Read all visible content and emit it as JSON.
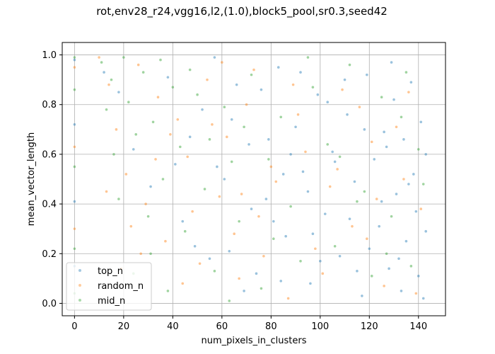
{
  "chart_data": {
    "type": "scatter",
    "title": "rot,env28_r24,vgg16,l2,(1.0),block5_pool,sr0.3,seed42",
    "xlabel": "num_pixels_in_clusters",
    "ylabel": "mean_vector_length",
    "xlim": [
      -5,
      151
    ],
    "ylim": [
      -0.05,
      1.05
    ],
    "xticks": [
      0,
      20,
      40,
      60,
      80,
      100,
      120,
      140
    ],
    "yticks": [
      0.0,
      0.2,
      0.4,
      0.6,
      0.8,
      1.0
    ],
    "xtick_labels": [
      "0",
      "20",
      "40",
      "60",
      "80",
      "100",
      "120",
      "140"
    ],
    "ytick_labels": [
      "0.0",
      "0.2",
      "0.4",
      "0.6",
      "0.8",
      "1.0"
    ],
    "grid": true,
    "legend_position": "lower-left",
    "series": [
      {
        "name": "top_n",
        "color": "#1f77b4",
        "points": [
          [
            0,
            0.98
          ],
          [
            0,
            0.72
          ],
          [
            0,
            0.41
          ],
          [
            0,
            0.15
          ],
          [
            12,
            0.93
          ],
          [
            18,
            0.85
          ],
          [
            24,
            0.62
          ],
          [
            31,
            0.47
          ],
          [
            38,
            0.91
          ],
          [
            44,
            0.33
          ],
          [
            52,
            0.78
          ],
          [
            58,
            0.55
          ],
          [
            63,
            0.21
          ],
          [
            66,
            0.88
          ],
          [
            71,
            0.64
          ],
          [
            74,
            0.12
          ],
          [
            78,
            0.42
          ],
          [
            83,
            0.95
          ],
          [
            86,
            0.27
          ],
          [
            90,
            0.71
          ],
          [
            93,
            0.53
          ],
          [
            96,
            0.08
          ],
          [
            99,
            0.84
          ],
          [
            102,
            0.36
          ],
          [
            105,
            0.61
          ],
          [
            108,
            0.19
          ],
          [
            111,
            0.76
          ],
          [
            114,
            0.49
          ],
          [
            117,
            0.03
          ],
          [
            119,
            0.92
          ],
          [
            122,
            0.58
          ],
          [
            124,
            0.31
          ],
          [
            126,
            0.69
          ],
          [
            128,
            0.14
          ],
          [
            130,
            0.82
          ],
          [
            131,
            0.44
          ],
          [
            133,
            0.05
          ],
          [
            134,
            0.66
          ],
          [
            135,
            0.25
          ],
          [
            137,
            0.89
          ],
          [
            138,
            0.52
          ],
          [
            139,
            0.37
          ],
          [
            140,
            0.11
          ],
          [
            141,
            0.73
          ],
          [
            142,
            0.02
          ],
          [
            143,
            0.6
          ],
          [
            143,
            0.29
          ],
          [
            120,
            0.22
          ],
          [
            110,
            0.9
          ],
          [
            100,
            0.17
          ],
          [
            95,
            0.45
          ],
          [
            88,
            0.6
          ],
          [
            81,
            0.33
          ],
          [
            76,
            0.86
          ],
          [
            69,
            0.05
          ],
          [
            61,
            0.5
          ],
          [
            55,
            0.18
          ],
          [
            47,
            0.67
          ],
          [
            136,
            0.48
          ],
          [
            129,
            0.97
          ],
          [
            125,
            0.41
          ],
          [
            115,
            0.13
          ],
          [
            106,
            0.57
          ],
          [
            97,
            0.28
          ],
          [
            84,
            0.09
          ],
          [
            72,
            0.38
          ],
          [
            64,
            0.74
          ],
          [
            57,
            0.99
          ],
          [
            49,
            0.23
          ],
          [
            41,
            0.56
          ],
          [
            127,
            0.63
          ],
          [
            132,
            0.18
          ],
          [
            118,
            0.7
          ],
          [
            112,
            0.34
          ],
          [
            103,
            0.81
          ],
          [
            92,
            0.93
          ],
          [
            85,
            0.52
          ],
          [
            79,
            0.66
          ]
        ]
      },
      {
        "name": "random_n",
        "color": "#ff7f0e",
        "points": [
          [
            0,
            0.95
          ],
          [
            0,
            0.63
          ],
          [
            0,
            0.3
          ],
          [
            10,
            0.99
          ],
          [
            14,
            0.88
          ],
          [
            17,
            0.7
          ],
          [
            21,
            0.52
          ],
          [
            26,
            0.96
          ],
          [
            29,
            0.4
          ],
          [
            34,
            0.83
          ],
          [
            37,
            0.25
          ],
          [
            42,
            0.74
          ],
          [
            46,
            0.59
          ],
          [
            51,
            0.16
          ],
          [
            54,
            0.9
          ],
          [
            59,
            0.43
          ],
          [
            62,
            0.67
          ],
          [
            67,
            0.1
          ],
          [
            70,
            0.8
          ],
          [
            75,
            0.35
          ],
          [
            80,
            0.55
          ],
          [
            87,
            0.02
          ],
          [
            91,
            0.76
          ],
          [
            98,
            0.22
          ],
          [
            104,
            0.47
          ],
          [
            109,
            0.86
          ],
          [
            113,
            0.31
          ],
          [
            121,
            0.65
          ],
          [
            126,
            0.07
          ],
          [
            134,
            0.5
          ],
          [
            141,
            0.38
          ],
          [
            19,
            0.14
          ],
          [
            23,
            0.31
          ],
          [
            33,
            0.58
          ],
          [
            48,
            0.37
          ],
          [
            56,
            0.72
          ],
          [
            65,
            0.28
          ],
          [
            73,
            0.94
          ],
          [
            82,
            0.49
          ],
          [
            94,
            0.61
          ],
          [
            101,
            0.12
          ],
          [
            116,
            0.79
          ],
          [
            123,
            0.42
          ],
          [
            136,
            0.85
          ],
          [
            13,
            0.45
          ],
          [
            27,
            0.2
          ],
          [
            39,
            0.68
          ],
          [
            44,
            0.08
          ],
          [
            60,
            0.97
          ],
          [
            68,
            0.44
          ],
          [
            77,
            0.19
          ],
          [
            89,
            0.88
          ],
          [
            107,
            0.54
          ],
          [
            119,
            0.26
          ],
          [
            131,
            0.71
          ],
          [
            139,
            0.04
          ]
        ]
      },
      {
        "name": "mid_n",
        "color": "#2ca02c",
        "points": [
          [
            0,
            0.99
          ],
          [
            0,
            0.86
          ],
          [
            0,
            0.55
          ],
          [
            0,
            0.22
          ],
          [
            0,
            0.04
          ],
          [
            11,
            0.97
          ],
          [
            13,
            0.78
          ],
          [
            15,
            0.9
          ],
          [
            16,
            0.6
          ],
          [
            20,
            0.99
          ],
          [
            22,
            0.81
          ],
          [
            25,
            0.68
          ],
          [
            28,
            0.93
          ],
          [
            30,
            0.35
          ],
          [
            32,
            0.73
          ],
          [
            35,
            0.98
          ],
          [
            36,
            0.5
          ],
          [
            40,
            0.87
          ],
          [
            43,
            0.63
          ],
          [
            45,
            0.29
          ],
          [
            50,
            0.84
          ],
          [
            53,
            0.46
          ],
          [
            57,
            0.13
          ],
          [
            61,
            0.79
          ],
          [
            64,
            0.57
          ],
          [
            67,
            0.33
          ],
          [
            72,
            0.92
          ],
          [
            76,
            0.06
          ],
          [
            79,
            0.58
          ],
          [
            84,
            0.75
          ],
          [
            88,
            0.39
          ],
          [
            92,
            0.17
          ],
          [
            97,
            0.87
          ],
          [
            103,
            0.64
          ],
          [
            106,
            0.23
          ],
          [
            112,
            0.96
          ],
          [
            115,
            0.41
          ],
          [
            121,
            0.11
          ],
          [
            125,
            0.83
          ],
          [
            129,
            0.35
          ],
          [
            133,
            0.75
          ],
          [
            137,
            0.15
          ],
          [
            142,
            0.48
          ],
          [
            18,
            0.42
          ],
          [
            24,
            0.12
          ],
          [
            31,
            0.2
          ],
          [
            38,
            0.05
          ],
          [
            47,
            0.94
          ],
          [
            55,
            0.66
          ],
          [
            63,
            0.01
          ],
          [
            69,
            0.71
          ],
          [
            81,
            0.26
          ],
          [
            95,
            0.99
          ],
          [
            108,
            0.59
          ],
          [
            118,
            0.45
          ],
          [
            127,
            0.2
          ],
          [
            135,
            0.93
          ],
          [
            140,
            0.62
          ]
        ]
      }
    ]
  }
}
